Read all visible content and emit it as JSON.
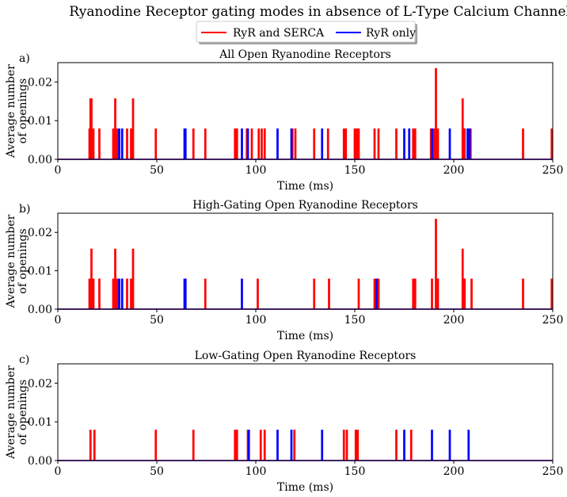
{
  "figure": {
    "title": "Ryanodine Receptor gating modes in absence of L-Type Calcium Channels",
    "legend": {
      "placement": "upper-center",
      "entries": [
        {
          "label": "RyR and SERCA",
          "color": "#ff0000"
        },
        {
          "label": "RyR only",
          "color": "#0000ff"
        }
      ]
    }
  },
  "chart_data": [
    {
      "type": "line",
      "panel_label": "a)",
      "title": "All Open Ryanodine Receptors",
      "xlabel": "Time (ms)",
      "ylabel": [
        "Average number",
        "of openings"
      ],
      "xlim": [
        0,
        250
      ],
      "ylim": [
        0,
        0.025
      ],
      "xticks": [
        0,
        50,
        100,
        150,
        200,
        250
      ],
      "yticks": [
        0.0,
        0.01,
        0.02
      ],
      "ytick_labels": [
        "0.00",
        "0.01",
        "0.02"
      ],
      "series": [
        {
          "name": "RyR and SERCA",
          "color": "#ff0000",
          "pulses": [
            [
              16,
              0.0078
            ],
            [
              16.5,
              0.0156
            ],
            [
              17,
              0.0156
            ],
            [
              18,
              0.0078
            ],
            [
              21,
              0.0078
            ],
            [
              28,
              0.0078
            ],
            [
              29,
              0.0156
            ],
            [
              30,
              0.0078
            ],
            [
              35,
              0.0078
            ],
            [
              37,
              0.0078
            ],
            [
              38,
              0.0156
            ],
            [
              49.5,
              0.0078
            ],
            [
              68.5,
              0.0078
            ],
            [
              74.5,
              0.0078
            ],
            [
              89.5,
              0.0078
            ],
            [
              90.5,
              0.0078
            ],
            [
              95.5,
              0.0078
            ],
            [
              98,
              0.0078
            ],
            [
              101.5,
              0.0078
            ],
            [
              103,
              0.0078
            ],
            [
              104.5,
              0.0078
            ],
            [
              118.5,
              0.0078
            ],
            [
              120,
              0.0078
            ],
            [
              129.5,
              0.0078
            ],
            [
              136.5,
              0.0078
            ],
            [
              144.5,
              0.0078
            ],
            [
              145.5,
              0.0078
            ],
            [
              150,
              0.0078
            ],
            [
              151,
              0.0078
            ],
            [
              152,
              0.0078
            ],
            [
              160,
              0.0078
            ],
            [
              162,
              0.0078
            ],
            [
              171,
              0.0078
            ],
            [
              179.5,
              0.0078
            ],
            [
              180.5,
              0.0078
            ],
            [
              188.5,
              0.0078
            ],
            [
              190,
              0.0078
            ],
            [
              191,
              0.0234
            ],
            [
              192,
              0.0078
            ],
            [
              204.5,
              0.0156
            ],
            [
              205.5,
              0.0078
            ],
            [
              208.5,
              0.0078
            ],
            [
              235,
              0.0078
            ],
            [
              249.5,
              0.0078
            ]
          ]
        },
        {
          "name": "RyR only",
          "color": "#0000ff",
          "pulses": [
            [
              31,
              0.0078
            ],
            [
              32.5,
              0.0078
            ],
            [
              64,
              0.0078
            ],
            [
              64.5,
              0.0078
            ],
            [
              93,
              0.0078
            ],
            [
              96,
              0.0078
            ],
            [
              111,
              0.0078
            ],
            [
              118,
              0.0078
            ],
            [
              133.5,
              0.0078
            ],
            [
              175,
              0.0078
            ],
            [
              177.5,
              0.0078
            ],
            [
              189,
              0.0078
            ],
            [
              198,
              0.0078
            ],
            [
              207,
              0.0078
            ],
            [
              208,
              0.0078
            ]
          ]
        }
      ]
    },
    {
      "type": "line",
      "panel_label": "b)",
      "title": "High-Gating Open Ryanodine Receptors",
      "xlabel": "Time (ms)",
      "ylabel": [
        "Average number",
        "of openings"
      ],
      "xlim": [
        0,
        250
      ],
      "ylim": [
        0,
        0.025
      ],
      "xticks": [
        0,
        50,
        100,
        150,
        200,
        250
      ],
      "yticks": [
        0.0,
        0.01,
        0.02
      ],
      "ytick_labels": [
        "0.00",
        "0.01",
        "0.02"
      ],
      "series": [
        {
          "name": "RyR and SERCA",
          "color": "#ff0000",
          "pulses": [
            [
              16,
              0.0078
            ],
            [
              17,
              0.0156
            ],
            [
              18,
              0.0078
            ],
            [
              21,
              0.0078
            ],
            [
              28,
              0.0078
            ],
            [
              29,
              0.0156
            ],
            [
              30,
              0.0078
            ],
            [
              35,
              0.0078
            ],
            [
              37,
              0.0078
            ],
            [
              38,
              0.0156
            ],
            [
              74.5,
              0.0078
            ],
            [
              101,
              0.0078
            ],
            [
              129.5,
              0.0078
            ],
            [
              137,
              0.0078
            ],
            [
              152,
              0.0078
            ],
            [
              160,
              0.0078
            ],
            [
              162,
              0.0078
            ],
            [
              179.5,
              0.0078
            ],
            [
              180.5,
              0.0078
            ],
            [
              189,
              0.0078
            ],
            [
              191,
              0.0234
            ],
            [
              192,
              0.0078
            ],
            [
              204.5,
              0.0156
            ],
            [
              205.5,
              0.0078
            ],
            [
              209,
              0.0078
            ],
            [
              235,
              0.0078
            ],
            [
              249.5,
              0.0078
            ]
          ]
        },
        {
          "name": "RyR only",
          "color": "#0000ff",
          "pulses": [
            [
              31,
              0.0078
            ],
            [
              32.5,
              0.0078
            ],
            [
              64,
              0.0078
            ],
            [
              64.5,
              0.0078
            ],
            [
              93,
              0.0078
            ],
            [
              161,
              0.0078
            ]
          ]
        }
      ]
    },
    {
      "type": "line",
      "panel_label": "c)",
      "title": "Low-Gating Open Ryanodine Receptors",
      "xlabel": "Time (ms)",
      "ylabel": [
        "Average number",
        "of openings"
      ],
      "xlim": [
        0,
        250
      ],
      "ylim": [
        0,
        0.025
      ],
      "xticks": [
        0,
        50,
        100,
        150,
        200,
        250
      ],
      "yticks": [
        0.0,
        0.01,
        0.02
      ],
      "ytick_labels": [
        "0.00",
        "0.01",
        "0.02"
      ],
      "series": [
        {
          "name": "RyR and SERCA",
          "color": "#ff0000",
          "pulses": [
            [
              16.5,
              0.0078
            ],
            [
              18.5,
              0.0078
            ],
            [
              49.5,
              0.0078
            ],
            [
              68.5,
              0.0078
            ],
            [
              89.5,
              0.0078
            ],
            [
              90.5,
              0.0078
            ],
            [
              96,
              0.0078
            ],
            [
              102.5,
              0.0078
            ],
            [
              104.5,
              0.0078
            ],
            [
              119.5,
              0.0078
            ],
            [
              144.5,
              0.0078
            ],
            [
              146,
              0.0078
            ],
            [
              150.5,
              0.0078
            ],
            [
              151.5,
              0.0078
            ],
            [
              171,
              0.0078
            ],
            [
              178.5,
              0.0078
            ]
          ]
        },
        {
          "name": "RyR only",
          "color": "#0000ff",
          "pulses": [
            [
              96.5,
              0.0078
            ],
            [
              111,
              0.0078
            ],
            [
              118,
              0.0078
            ],
            [
              133.5,
              0.0078
            ],
            [
              175,
              0.0078
            ],
            [
              189,
              0.0078
            ],
            [
              198,
              0.0078
            ],
            [
              207.5,
              0.0078
            ]
          ]
        }
      ]
    }
  ]
}
